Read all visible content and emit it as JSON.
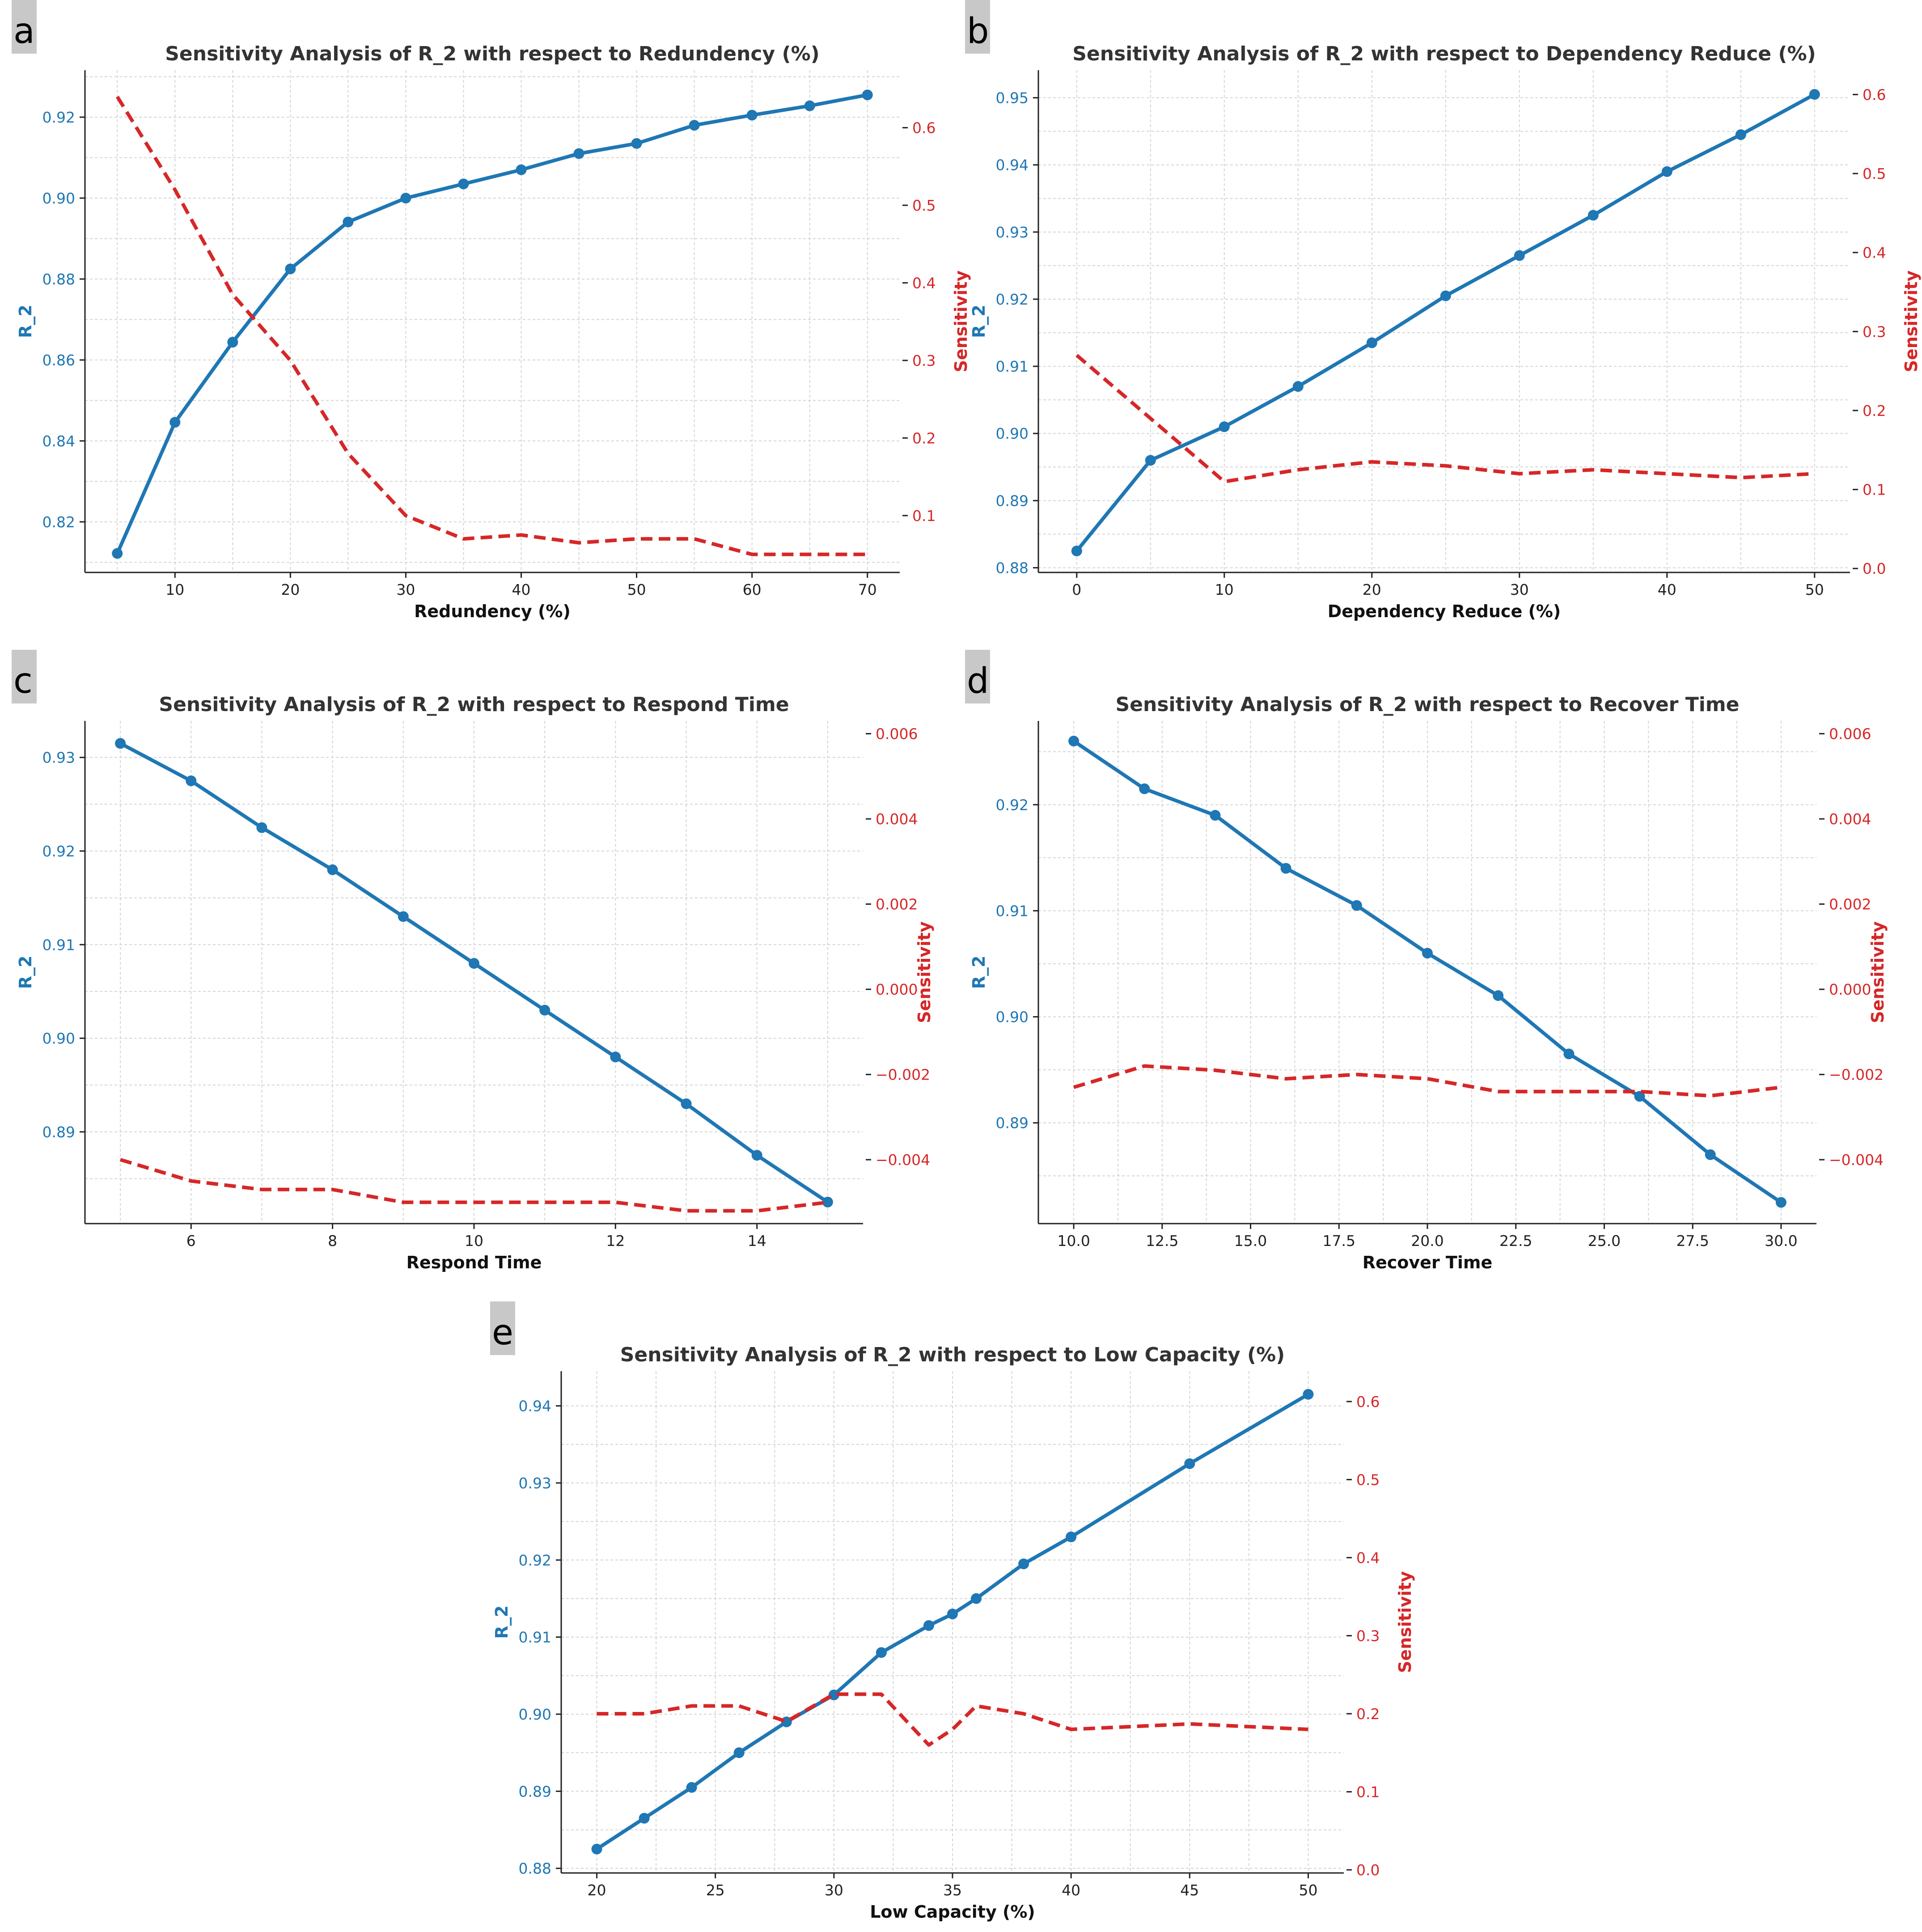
{
  "chart_data": [
    {
      "id": "a",
      "type": "line",
      "panel_label": "a",
      "title": "Sensitivity Analysis of R_2 with respect to Redundency (%)",
      "xlabel": "Redundency (%)",
      "ylabel": "R_2",
      "y2label": "Sensitivity",
      "xlim": [
        2.2,
        72.8
      ],
      "ylim": [
        0.8075,
        0.9316
      ],
      "y2lim": [
        0.0267,
        0.6741
      ],
      "xticks": [
        10,
        20,
        30,
        40,
        50,
        60,
        70
      ],
      "xtick_labels": [
        "10",
        "20",
        "30",
        "40",
        "50",
        "60",
        "70"
      ],
      "yticks": [
        0.82,
        0.84,
        0.86,
        0.88,
        0.9,
        0.92
      ],
      "ytick_labels": [
        "0.82",
        "0.84",
        "0.86",
        "0.88",
        "0.90",
        "0.92"
      ],
      "y2ticks": [
        0.1,
        0.2,
        0.3,
        0.4,
        0.5,
        0.6
      ],
      "y2tick_labels": [
        "0.1",
        "0.2",
        "0.3",
        "0.4",
        "0.5",
        "0.6"
      ],
      "grid": true,
      "series": [
        {
          "name": "R_2",
          "axis": "left",
          "style": "solid-markers",
          "color": "#1f77b4",
          "x": [
            5,
            10,
            15,
            20,
            25,
            30,
            35,
            40,
            45,
            50,
            55,
            60,
            65,
            70
          ],
          "values": [
            0.8122,
            0.8446,
            0.8644,
            0.8825,
            0.8941,
            0.9,
            0.9035,
            0.907,
            0.911,
            0.9135,
            0.918,
            0.9205,
            0.9228,
            0.9255
          ]
        },
        {
          "name": "Sensitivity",
          "axis": "right",
          "style": "dashed",
          "color": "#d62728",
          "x": [
            5,
            10,
            15,
            20,
            25,
            30,
            35,
            40,
            45,
            50,
            55,
            60,
            65,
            70
          ],
          "values": [
            0.64,
            0.52,
            0.385,
            0.3,
            0.18,
            0.1,
            0.07,
            0.075,
            0.065,
            0.07,
            0.07,
            0.05,
            0.05,
            0.05
          ]
        }
      ]
    },
    {
      "id": "b",
      "type": "line",
      "panel_label": "b",
      "title": "Sensitivity Analysis of R_2 with respect to Dependency Reduce (%)",
      "xlabel": "Dependency Reduce (%)",
      "ylabel": "R_2",
      "y2label": "Sensitivity",
      "xlim": [
        -2.6,
        52.4
      ],
      "ylim": [
        0.8793,
        0.9541
      ],
      "y2lim": [
        -0.005,
        0.6308
      ],
      "xticks": [
        0,
        10,
        20,
        30,
        40,
        50
      ],
      "xtick_labels": [
        "0",
        "10",
        "20",
        "30",
        "40",
        "50"
      ],
      "yticks": [
        0.88,
        0.89,
        0.9,
        0.91,
        0.92,
        0.93,
        0.94,
        0.95
      ],
      "ytick_labels": [
        "0.88",
        "0.89",
        "0.90",
        "0.91",
        "0.92",
        "0.93",
        "0.94",
        "0.95"
      ],
      "y2ticks": [
        0.0,
        0.1,
        0.2,
        0.3,
        0.4,
        0.5,
        0.6
      ],
      "y2tick_labels": [
        "0.0",
        "0.1",
        "0.2",
        "0.3",
        "0.4",
        "0.5",
        "0.6"
      ],
      "grid": true,
      "series": [
        {
          "name": "R_2",
          "axis": "left",
          "style": "solid-markers",
          "color": "#1f77b4",
          "x": [
            0,
            5,
            10,
            15,
            20,
            25,
            30,
            35,
            40,
            45,
            50
          ],
          "values": [
            0.8825,
            0.896,
            0.901,
            0.907,
            0.9135,
            0.9205,
            0.9265,
            0.9325,
            0.939,
            0.9445,
            0.9505
          ]
        },
        {
          "name": "Sensitivity",
          "axis": "right",
          "style": "dashed",
          "color": "#d62728",
          "x": [
            0,
            5,
            10,
            15,
            20,
            25,
            30,
            35,
            40,
            45,
            50
          ],
          "values": [
            0.27,
            0.19,
            0.11,
            0.125,
            0.135,
            0.13,
            0.12,
            0.125,
            0.12,
            0.115,
            0.12
          ]
        }
      ]
    },
    {
      "id": "c",
      "type": "line",
      "panel_label": "c",
      "title": "Sensitivity Analysis of R_2 with respect to Respond Time",
      "xlabel": "Respond Time",
      "ylabel": "R_2",
      "y2label": "Sensitivity",
      "xlim": [
        4.5,
        15.5
      ],
      "ylim": [
        0.8802,
        0.9339
      ],
      "y2lim": [
        -0.0055,
        0.0063
      ],
      "xticks": [
        6,
        8,
        10,
        12,
        14
      ],
      "xtick_labels": [
        "6",
        "8",
        "10",
        "12",
        "14"
      ],
      "yticks": [
        0.89,
        0.9,
        0.91,
        0.92,
        0.93
      ],
      "ytick_labels": [
        "0.89",
        "0.90",
        "0.91",
        "0.92",
        "0.93"
      ],
      "y2ticks": [
        -0.004,
        -0.002,
        0.0,
        0.002,
        0.004,
        0.006
      ],
      "y2tick_labels": [
        "−0.004",
        "−0.002",
        "0.000",
        "0.002",
        "0.004",
        "0.006"
      ],
      "grid": true,
      "series": [
        {
          "name": "R_2",
          "axis": "left",
          "style": "solid-markers",
          "color": "#1f77b4",
          "x": [
            5,
            6,
            7,
            8,
            9,
            10,
            11,
            12,
            13,
            14,
            15
          ],
          "values": [
            0.9315,
            0.9275,
            0.9225,
            0.918,
            0.913,
            0.908,
            0.903,
            0.898,
            0.893,
            0.8875,
            0.8825
          ]
        },
        {
          "name": "Sensitivity",
          "axis": "right",
          "style": "dashed",
          "color": "#d62728",
          "x": [
            5,
            6,
            7,
            8,
            9,
            10,
            11,
            12,
            13,
            14,
            15
          ],
          "values": [
            -0.004,
            -0.0045,
            -0.0047,
            -0.0047,
            -0.005,
            -0.005,
            -0.005,
            -0.005,
            -0.0052,
            -0.0052,
            -0.005
          ]
        }
      ]
    },
    {
      "id": "d",
      "type": "line",
      "panel_label": "d",
      "title": "Sensitivity Analysis of R_2 with respect to Recover Time",
      "xlabel": "Recover Time",
      "ylabel": "R_2",
      "y2label": "Sensitivity",
      "xlim": [
        9.0,
        31.0
      ],
      "ylim": [
        0.8805,
        0.9279
      ],
      "y2lim": [
        -0.0055,
        0.0063
      ],
      "xticks": [
        10.0,
        12.5,
        15.0,
        17.5,
        20.0,
        22.5,
        25.0,
        27.5,
        30.0
      ],
      "xtick_labels": [
        "10.0",
        "12.5",
        "15.0",
        "17.5",
        "20.0",
        "22.5",
        "25.0",
        "27.5",
        "30.0"
      ],
      "yticks": [
        0.89,
        0.9,
        0.91,
        0.92
      ],
      "ytick_labels": [
        "0.89",
        "0.90",
        "0.91",
        "0.92"
      ],
      "y2ticks": [
        -0.004,
        -0.002,
        0.0,
        0.002,
        0.004,
        0.006
      ],
      "y2tick_labels": [
        "−0.004",
        "−0.002",
        "0.000",
        "0.002",
        "0.004",
        "0.006"
      ],
      "grid": true,
      "series": [
        {
          "name": "R_2",
          "axis": "left",
          "style": "solid-markers",
          "color": "#1f77b4",
          "x": [
            10,
            12,
            14,
            16,
            18,
            20,
            22,
            24,
            26,
            28,
            30
          ],
          "values": [
            0.926,
            0.9215,
            0.919,
            0.914,
            0.9105,
            0.906,
            0.902,
            0.8965,
            0.8925,
            0.887,
            0.8825
          ]
        },
        {
          "name": "Sensitivity",
          "axis": "right",
          "style": "dashed",
          "color": "#d62728",
          "x": [
            10,
            12,
            14,
            16,
            18,
            20,
            22,
            24,
            26,
            28,
            30
          ],
          "values": [
            -0.0023,
            -0.0018,
            -0.0019,
            -0.0021,
            -0.002,
            -0.0021,
            -0.0024,
            -0.0024,
            -0.0024,
            -0.0025,
            -0.0023
          ]
        }
      ]
    },
    {
      "id": "e",
      "type": "line",
      "panel_label": "e",
      "title": "Sensitivity Analysis of R_2 with respect to Low Capacity (%)",
      "xlabel": "Low Capacity (%)",
      "ylabel": "R_2",
      "y2label": "Sensitivity",
      "xlim": [
        18.5,
        51.5
      ],
      "ylim": [
        0.8794,
        0.9445
      ],
      "y2lim": [
        -0.004,
        0.6389
      ],
      "xticks": [
        20,
        25,
        30,
        35,
        40,
        45,
        50
      ],
      "xtick_labels": [
        "20",
        "25",
        "30",
        "35",
        "40",
        "45",
        "50"
      ],
      "yticks": [
        0.88,
        0.89,
        0.9,
        0.91,
        0.92,
        0.93,
        0.94
      ],
      "ytick_labels": [
        "0.88",
        "0.89",
        "0.90",
        "0.91",
        "0.92",
        "0.93",
        "0.94"
      ],
      "y2ticks": [
        0.0,
        0.1,
        0.2,
        0.3,
        0.4,
        0.5,
        0.6
      ],
      "y2tick_labels": [
        "0.0",
        "0.1",
        "0.2",
        "0.3",
        "0.4",
        "0.5",
        "0.6"
      ],
      "grid": true,
      "series": [
        {
          "name": "R_2",
          "axis": "left",
          "style": "solid-markers",
          "color": "#1f77b4",
          "x": [
            20,
            22,
            24,
            26,
            28,
            30,
            32,
            34,
            35,
            36,
            38,
            40,
            45,
            50
          ],
          "values": [
            0.8825,
            0.8865,
            0.8905,
            0.895,
            0.899,
            0.9025,
            0.908,
            0.9115,
            0.913,
            0.915,
            0.9195,
            0.923,
            0.9325,
            0.9415
          ]
        },
        {
          "name": "Sensitivity",
          "axis": "right",
          "style": "dashed",
          "color": "#d62728",
          "x": [
            20,
            22,
            24,
            26,
            28,
            30,
            32,
            34,
            35,
            36,
            38,
            40,
            45,
            50
          ],
          "values": [
            0.2,
            0.2,
            0.21,
            0.21,
            0.19,
            0.225,
            0.225,
            0.16,
            0.18,
            0.21,
            0.2,
            0.18,
            0.187,
            0.18
          ]
        }
      ]
    }
  ]
}
